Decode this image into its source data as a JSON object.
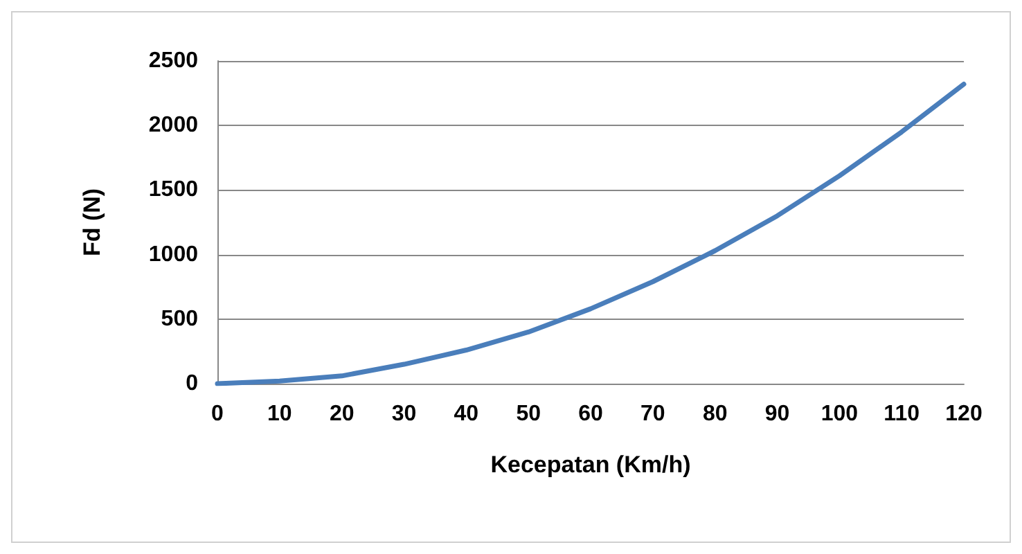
{
  "chart_data": {
    "type": "line",
    "xlabel": "Kecepatan (Km/h)",
    "ylabel": "Fd (N)",
    "x": [
      0,
      10,
      20,
      30,
      40,
      50,
      60,
      70,
      80,
      90,
      100,
      110,
      120
    ],
    "series": [
      {
        "color": "#4a7ebb",
        "values": [
          0,
          20,
          60,
          150,
          260,
          400,
          580,
          790,
          1030,
          1300,
          1610,
          1950,
          2320
        ]
      }
    ],
    "xlim": [
      0,
      120
    ],
    "xticks": [
      0,
      10,
      20,
      30,
      40,
      50,
      60,
      70,
      80,
      90,
      100,
      110,
      120
    ],
    "ylim": [
      0,
      2500
    ],
    "yticks": [
      0,
      500,
      1000,
      1500,
      2000,
      2500
    ],
    "grid": "y",
    "marker": "none",
    "line_style": "solid"
  }
}
